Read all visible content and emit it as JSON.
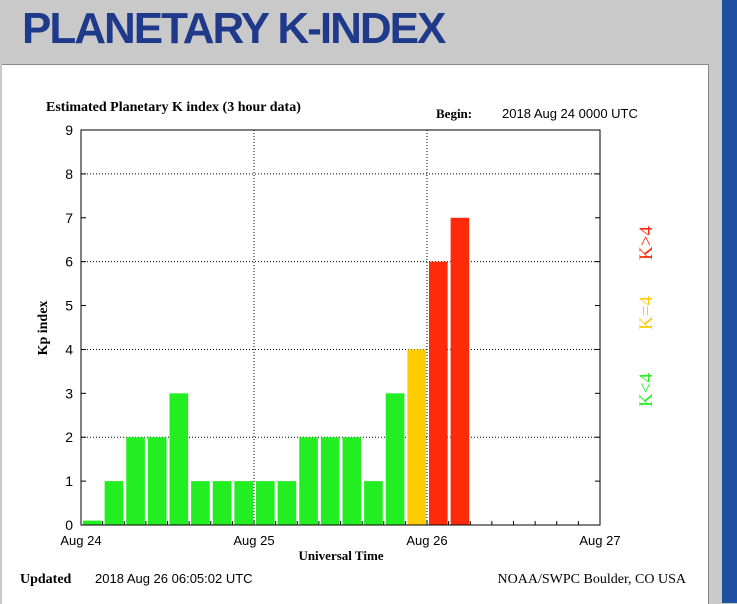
{
  "header": {
    "title": "PLANETARY K-INDEX"
  },
  "colors": {
    "header_text": "#1f3a8a",
    "sidebar": "#1e4fa0",
    "green": "#22ee22",
    "yellow": "#ffcc00",
    "red": "#ff2a0a"
  },
  "chart_data": {
    "type": "bar",
    "title": "Estimated Planetary K index (3 hour data)",
    "begin_label": "Begin:",
    "begin_value": "2018 Aug 24 0000 UTC",
    "xlabel": "Universal Time",
    "ylabel": "Kp index",
    "ylim": [
      0,
      9
    ],
    "yticks": [
      "0",
      "1",
      "2",
      "3",
      "4",
      "5",
      "6",
      "7",
      "8",
      "9"
    ],
    "xticks": [
      "Aug 24",
      "Aug 25",
      "Aug 26",
      "Aug 27"
    ],
    "xrange_hours": [
      0,
      72
    ],
    "bin_hours": 3,
    "values": [
      0.1,
      1,
      2,
      2,
      3,
      1,
      1,
      1,
      1,
      1,
      2,
      2,
      2,
      1,
      3,
      4,
      6,
      7
    ],
    "grid": true,
    "legend": [
      {
        "label": "K<4",
        "color": "#22ee22"
      },
      {
        "label": "K=4",
        "color": "#ffcc00"
      },
      {
        "label": "K>4",
        "color": "#ff2a0a"
      }
    ],
    "updated_label": "Updated",
    "updated_value": "2018 Aug 26 06:05:02 UTC",
    "credit": "NOAA/SWPC Boulder, CO USA"
  }
}
